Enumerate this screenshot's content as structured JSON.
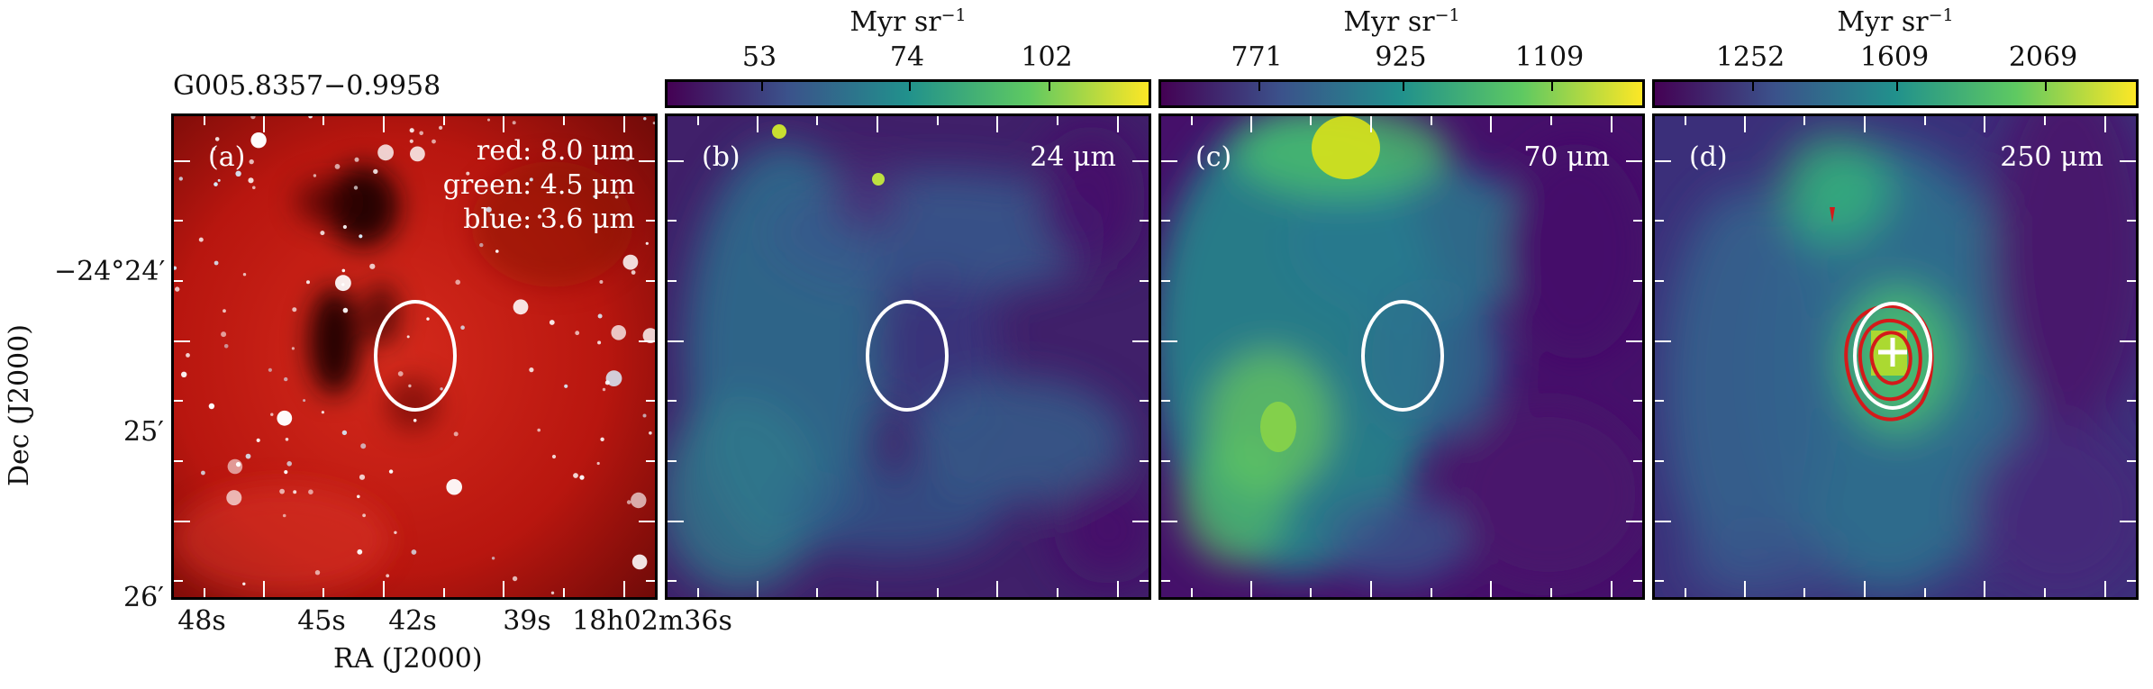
{
  "figure": {
    "source_name": "G005.8357−0.9958",
    "x_axis_label": "RA (J2000)",
    "y_axis_label": "Dec (J2000)",
    "x_ticks": [
      "48s",
      "45s",
      "42s",
      "39s",
      "18h02m36s"
    ],
    "y_ticks": [
      "−24°24′",
      "25′",
      "26′"
    ]
  },
  "panels": [
    {
      "letter": "(a)",
      "composite_legend": [
        "red: 8.0 μm",
        "green: 4.5 μm",
        "blue: 3.6 μm"
      ],
      "colors": {
        "base": "#c41a14",
        "dark": "#1a0404"
      }
    },
    {
      "letter": "(b)",
      "wavelength": "24 μm",
      "colorbar": {
        "label": "Myr sr",
        "exponent": "−1",
        "ticks": [
          "53",
          "74",
          "102"
        ]
      }
    },
    {
      "letter": "(c)",
      "wavelength": "70 μm",
      "colorbar": {
        "label": "Myr sr",
        "exponent": "−1",
        "ticks": [
          "771",
          "925",
          "1109"
        ]
      }
    },
    {
      "letter": "(d)",
      "wavelength": "250 μm",
      "colorbar": {
        "label": "Myr sr",
        "exponent": "−1",
        "ticks": [
          "1252",
          "1609",
          "2069"
        ]
      },
      "overlays": {
        "contour_color": "#d41a1a",
        "marker_color": "#ffffff"
      }
    }
  ],
  "colormap": [
    "#440154",
    "#3b528b",
    "#21918c",
    "#5ec962",
    "#fde725"
  ]
}
